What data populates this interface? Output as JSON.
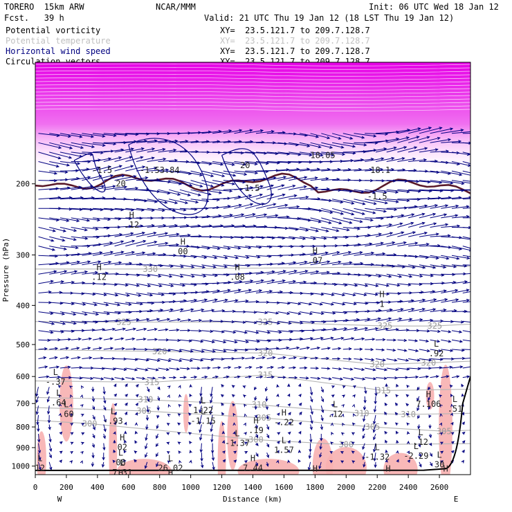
{
  "header": {
    "model": "TORERO  15km ARW",
    "center": "NCAR/MMM",
    "init": "Init: 06 UTC Wed 18 Jan 12",
    "fcst": "Fcst.   39 h",
    "valid": "Valid: 21 UTC Thu 19 Jan 12 (18 LST Thu 19 Jan 12)"
  },
  "legend": [
    {
      "label": "Potential vorticity",
      "color": "#000000",
      "xy": "XY=  23.5.121.7 to 209.7.128.7"
    },
    {
      "label": "Potential temperature",
      "color": "#c0c0c0",
      "xy": "XY=  23.5.121.7 to 209.7.128.7"
    },
    {
      "label": "Horizontal wind speed",
      "color": "#000080",
      "xy": "XY=  23.5.121.7 to 209.7.128.7"
    },
    {
      "label": "Circulation vectors",
      "color": "#000000",
      "xy": "XY=  23.5.121.7 to 209.7.128.7"
    }
  ],
  "chart_data": {
    "type": "cross-section",
    "xlabel": "Distance (km)",
    "ylabel": "Pressure (hPa)",
    "xlim": [
      0,
      2800
    ],
    "ylim": [
      1050,
      100
    ],
    "x_ticks": [
      0,
      200,
      400,
      600,
      800,
      1000,
      1200,
      1400,
      1600,
      1800,
      2000,
      2200,
      2400,
      2600
    ],
    "y_ticks": [
      200,
      300,
      400,
      500,
      600,
      700,
      800,
      900,
      1000
    ],
    "y_scale": "log",
    "x_end_labels": {
      "left": "W",
      "right": "E"
    },
    "colors": {
      "tropopause_fill": "#e600e6",
      "pv_2pvu": "#5a1a2a",
      "theta": "#b4b4b4",
      "wind": "#000080",
      "vectors": "#000080",
      "pv_shade": "#f7b0b0",
      "terrain": "#000000"
    },
    "theta_contours": [
      {
        "value": 300,
        "label_points": [
          [
            350,
            785
          ],
          [
            1420,
            860
          ],
          [
            2000,
            885
          ]
        ]
      },
      {
        "value": 305,
        "label_points": [
          [
            700,
            730
          ],
          [
            1470,
            760
          ],
          [
            2170,
            800
          ],
          [
            2630,
            820
          ]
        ]
      },
      {
        "value": 310,
        "label_points": [
          [
            710,
            685
          ],
          [
            1440,
            705
          ],
          [
            2100,
            740
          ],
          [
            2400,
            745
          ]
        ]
      },
      {
        "value": 315,
        "label_points": [
          [
            750,
            620
          ],
          [
            1480,
            595
          ],
          [
            2240,
            650
          ]
        ]
      },
      {
        "value": 320,
        "label_points": [
          [
            800,
            520
          ],
          [
            1480,
            525
          ],
          [
            2200,
            560
          ],
          [
            2530,
            555
          ]
        ]
      },
      {
        "value": 325,
        "label_points": [
          [
            570,
            440
          ],
          [
            1480,
            440
          ],
          [
            2250,
            450
          ],
          [
            2570,
            450
          ]
        ]
      },
      {
        "value": 330,
        "label_points": [
          [
            740,
            325
          ]
        ]
      }
    ],
    "theta_labels": [
      "300",
      "305",
      "310",
      "315",
      "320",
      "325",
      "330"
    ],
    "extrema": [
      {
        "x": 130,
        "p": 600,
        "type": "L",
        "value": "-.37"
      },
      {
        "x": 150,
        "p": 675,
        "type": "L",
        "value": ".64"
      },
      {
        "x": 200,
        "p": 720,
        "type": "L",
        "value": ".60"
      },
      {
        "x": 410,
        "p": 330,
        "type": "H",
        "value": ".12"
      },
      {
        "x": 500,
        "p": 750,
        "type": "L",
        "value": "-.93"
      },
      {
        "x": 1080,
        "p": 705,
        "type": "L",
        "value": "1.22"
      },
      {
        "x": 1080,
        "p": 750,
        "type": "L",
        "value": "-1.15"
      },
      {
        "x": 1420,
        "p": 790,
        "type": "H",
        "value": ".19"
      },
      {
        "x": 1600,
        "p": 755,
        "type": "H",
        "value": "-.22"
      },
      {
        "x": 1930,
        "p": 720,
        "type": "L",
        "value": ".12"
      },
      {
        "x": 1300,
        "p": 850,
        "type": "L",
        "value": "-1.37"
      },
      {
        "x": 1600,
        "p": 885,
        "type": "L",
        "value": "1.57"
      },
      {
        "x": 2200,
        "p": 920,
        "type": "L",
        "value": "-1.32"
      },
      {
        "x": 2450,
        "p": 915,
        "type": "L",
        "value": "-2.29"
      },
      {
        "x": 2480,
        "p": 845,
        "type": "L",
        "value": ".12"
      },
      {
        "x": 2580,
        "p": 510,
        "type": "L",
        "value": ".92"
      },
      {
        "x": 2530,
        "p": 680,
        "type": "H",
        "value": "7.106"
      },
      {
        "x": 2700,
        "p": 700,
        "type": "L",
        "value": ".51"
      },
      {
        "x": 1800,
        "p": 300,
        "type": "H",
        "value": ".07"
      },
      {
        "x": 1300,
        "p": 330,
        "type": "H",
        "value": ".08"
      },
      {
        "x": 2230,
        "p": 385,
        "type": "H",
        "value": "1"
      },
      {
        "x": 950,
        "p": 285,
        "type": "H",
        "value": "00"
      },
      {
        "x": 620,
        "p": 245,
        "type": "H",
        "value": ".12"
      },
      {
        "x": 560,
        "p": 870,
        "type": "H",
        "value": "02"
      },
      {
        "x": 550,
        "p": 950,
        "type": "L",
        "value": "08"
      },
      {
        "x": 560,
        "p": 1005,
        "type": "L",
        "value": "7.31"
      },
      {
        "x": 870,
        "p": 980,
        "type": "L",
        "value": "26.02"
      },
      {
        "x": 1400,
        "p": 980,
        "type": "H",
        "value": "7.44"
      },
      {
        "x": 2270,
        "p": 1040,
        "type": "H",
        "value": "8.58"
      },
      {
        "x": 2640,
        "p": 1040,
        "type": "H",
        "value": "7.37"
      },
      {
        "x": 2600,
        "p": 960,
        "type": "L",
        "value": "30"
      },
      {
        "x": 1800,
        "p": 1040,
        "type": "H",
        "value": "9.81"
      },
      {
        "x": 550,
        "p": 1065,
        "type": "H",
        "value": "4.19"
      },
      {
        "x": 870,
        "p": 1065,
        "type": "H",
        "value": "3.31"
      },
      {
        "x": 30,
        "p": 980,
        "type": "L",
        "value": "12"
      }
    ],
    "upper_labels": [
      {
        "x": 430,
        "p": 185,
        "value": "-1.5"
      },
      {
        "x": 550,
        "p": 200,
        "value": "20"
      },
      {
        "x": 800,
        "p": 185,
        "value": "-1.53.84"
      },
      {
        "x": 1350,
        "p": 180,
        "value": "20"
      },
      {
        "x": 1380,
        "p": 205,
        "value": "-1.5"
      },
      {
        "x": 1850,
        "p": 170,
        "value": "18.05"
      },
      {
        "x": 2220,
        "p": 185,
        "value": "18.1"
      },
      {
        "x": 2200,
        "p": 215,
        "value": "-1.5"
      }
    ]
  }
}
